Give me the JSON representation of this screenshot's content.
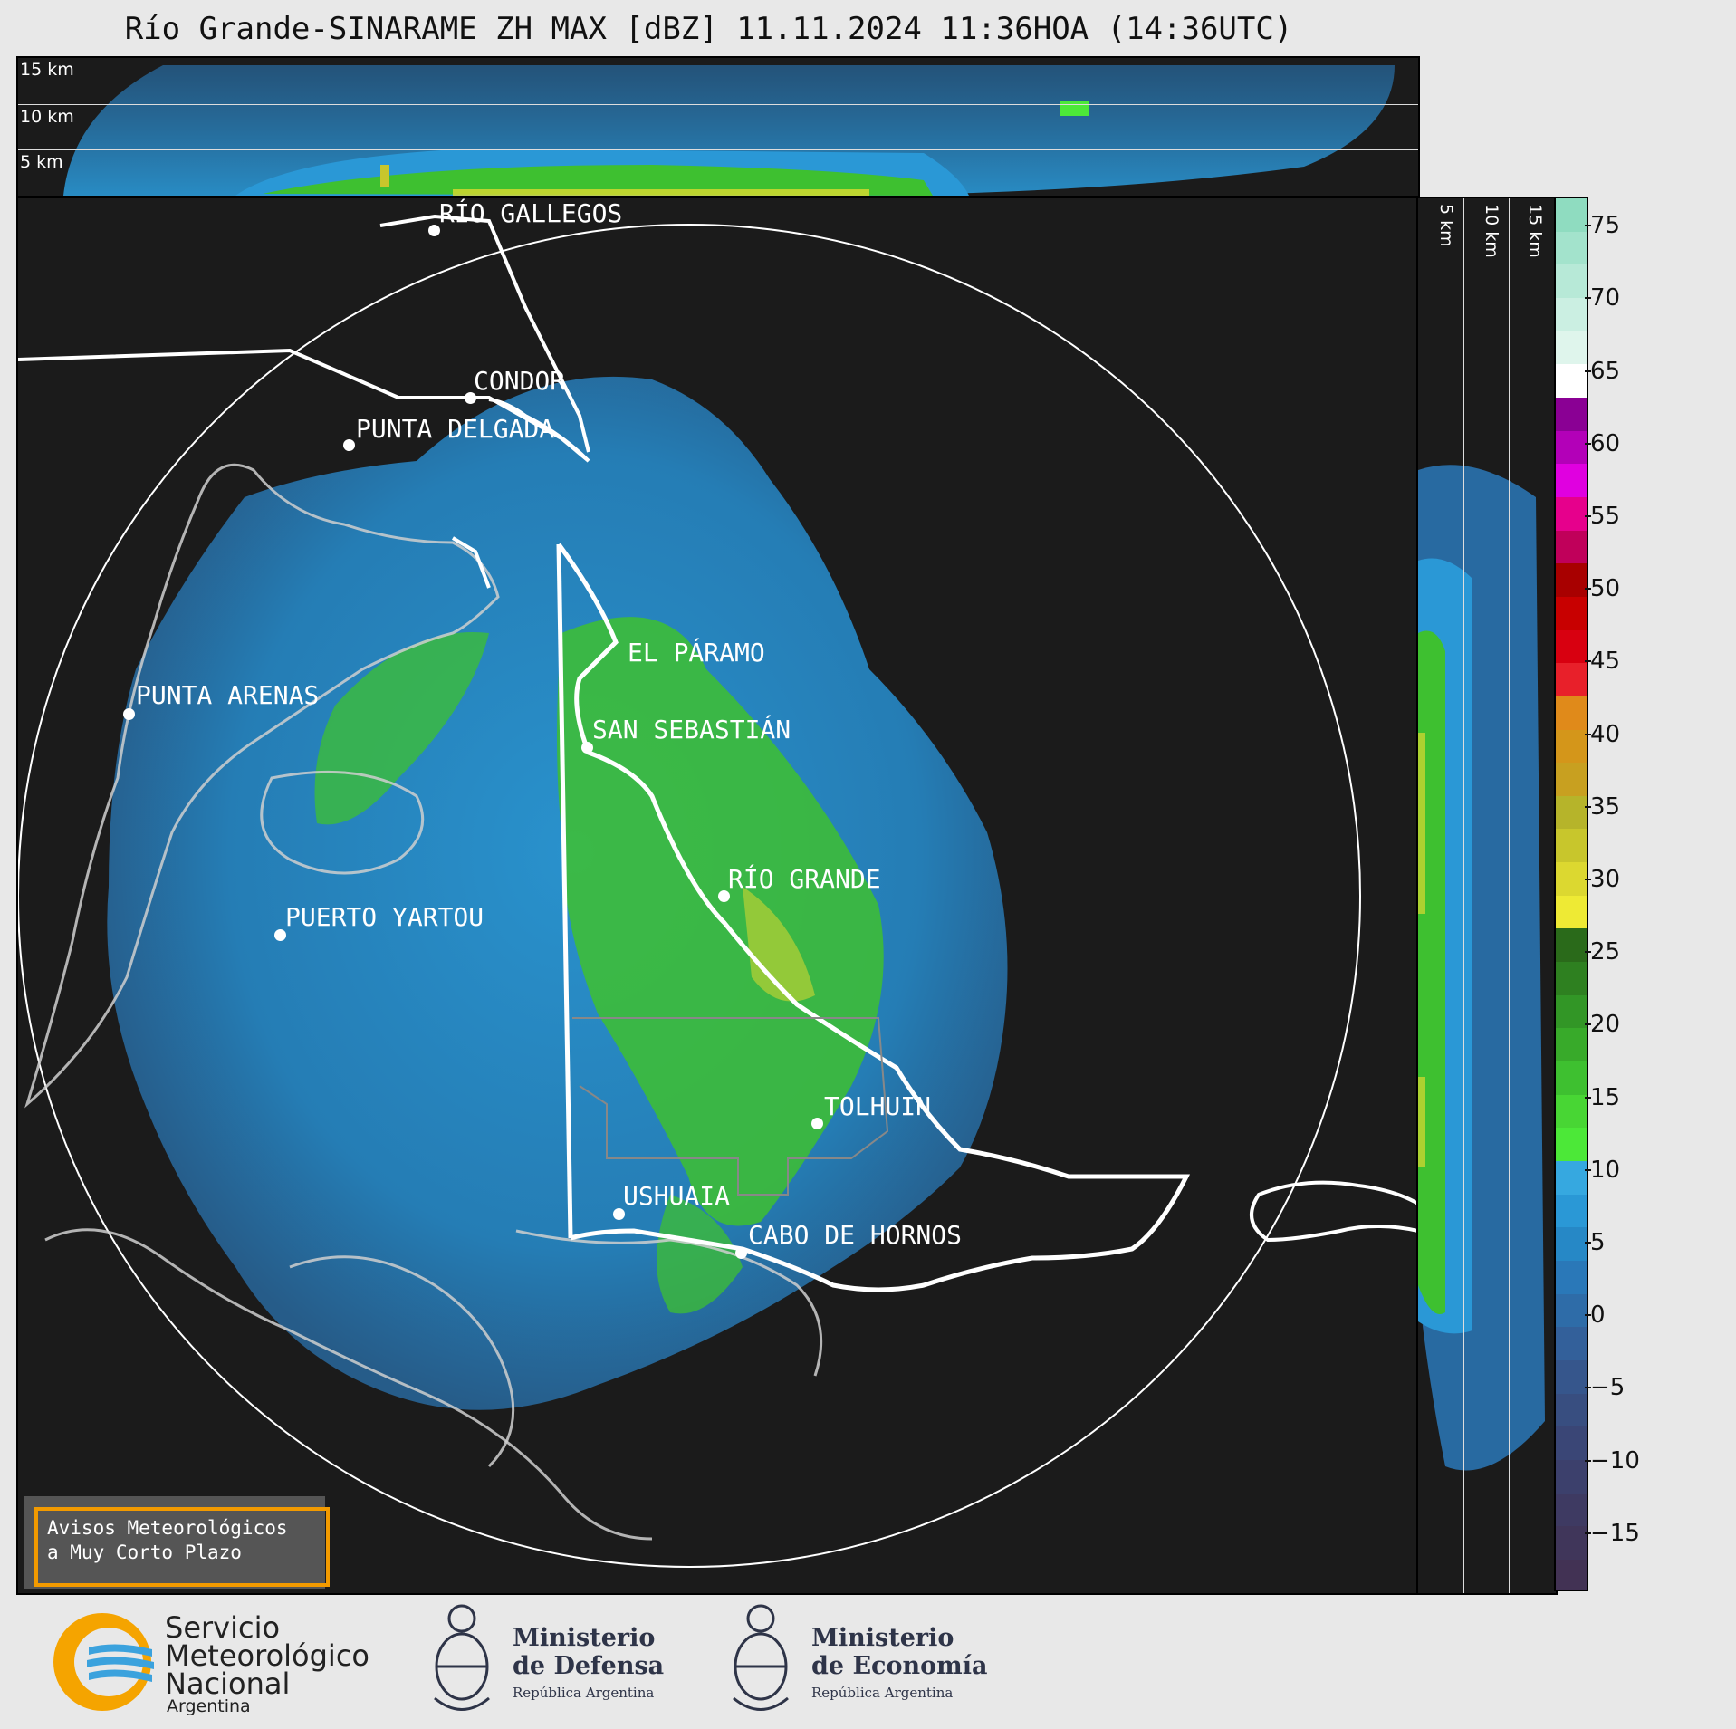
{
  "title": "Río Grande-SINARAME ZH MAX [dBZ] 11.11.2024 11:36HOA (14:36UTC)",
  "top_panel": {
    "height_labels": [
      "15 km",
      "10 km",
      "5 km"
    ]
  },
  "right_panel": {
    "height_labels": [
      "5 km",
      "10 km",
      "15 km"
    ]
  },
  "map": {
    "cities": [
      {
        "name": "RÍO GALLEGOS",
        "key": "rio-gallegos"
      },
      {
        "name": "CONDOR",
        "key": "condor"
      },
      {
        "name": "PUNTA DELGADA",
        "key": "punta-delgada"
      },
      {
        "name": "EL PÁRAMO",
        "key": "el-paramo"
      },
      {
        "name": "PUNTA ARENAS",
        "key": "punta-arenas"
      },
      {
        "name": "SAN SEBASTIÁN",
        "key": "san-sebastian"
      },
      {
        "name": "RÍO GRANDE",
        "key": "rio-grande"
      },
      {
        "name": "PUERTO YARTOU",
        "key": "puerto-yartou"
      },
      {
        "name": "TOLHUIN",
        "key": "tolhuin"
      },
      {
        "name": "USHUAIA",
        "key": "ushuaia"
      },
      {
        "name": "CABO DE HORNOS",
        "key": "cabo-de-hornos"
      }
    ]
  },
  "colorbar": {
    "unit": "dBZ",
    "ticks": [
      "75",
      "70",
      "65",
      "60",
      "55",
      "50",
      "45",
      "40",
      "35",
      "30",
      "25",
      "20",
      "15",
      "10",
      "5",
      "0",
      "−5",
      "−10",
      "−15"
    ],
    "colors_top_to_bottom": [
      "#8fdcc0",
      "#a3e3cc",
      "#b7e9d7",
      "#cbefe2",
      "#dff5ec",
      "#ffffff",
      "#8a0094",
      "#b300b8",
      "#e000e0",
      "#e6008c",
      "#c0005a",
      "#a80000",
      "#c80000",
      "#d80010",
      "#e8202a",
      "#e08a1a",
      "#d4961a",
      "#c8a020",
      "#b6b42a",
      "#c8c62c",
      "#dcd830",
      "#eeea34",
      "#2a6a1a",
      "#2e8020",
      "#329626",
      "#38aa2a",
      "#3ec030",
      "#48d634",
      "#4ce838",
      "#36a8e0",
      "#2a98d6",
      "#2688c6",
      "#2a78b8",
      "#2e6ca8",
      "#33609a",
      "#36568c",
      "#384e80",
      "#3a4676",
      "#3c406c",
      "#3e3a62",
      "#40365a",
      "#423254"
    ],
    "vmin": -19,
    "vmax": 77
  },
  "notice": {
    "line1": "Avisos Meteorológicos",
    "line2": "a Muy Corto Plazo"
  },
  "footer": {
    "smn": {
      "line1": "Servicio",
      "line2": "Meteorológico",
      "line3": "Nacional",
      "line4": "Argentina"
    },
    "defensa": {
      "line1": "Ministerio",
      "line2": "de Defensa",
      "line3": "República Argentina"
    },
    "economia": {
      "line1": "Ministerio",
      "line2": "de Economía",
      "line3": "República Argentina"
    }
  }
}
